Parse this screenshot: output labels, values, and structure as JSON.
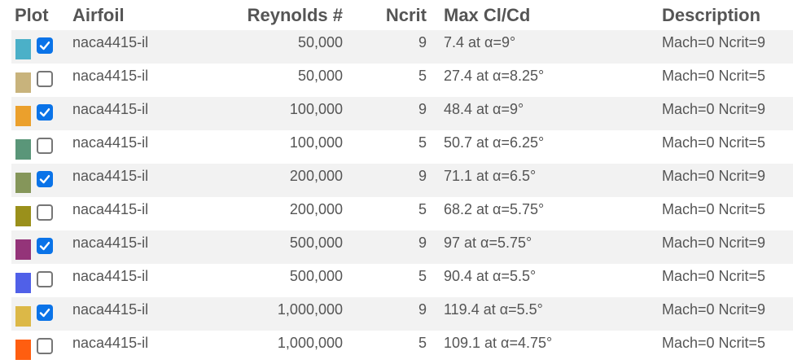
{
  "headers": {
    "plot": "Plot",
    "airfoil": "Airfoil",
    "reynolds": "Reynolds #",
    "ncrit": "Ncrit",
    "maxclcd": "Max Cl/Cd",
    "description": "Description"
  },
  "rows": [
    {
      "color": "#4bb0c8",
      "checked": true,
      "airfoil": "naca4415-il",
      "reynolds": "50,000",
      "ncrit": "9",
      "maxclcd": "7.4 at α=9°",
      "description": "Mach=0 Ncrit=9"
    },
    {
      "color": "#c8b37c",
      "checked": false,
      "airfoil": "naca4415-il",
      "reynolds": "50,000",
      "ncrit": "5",
      "maxclcd": "27.4 at α=8.25°",
      "description": "Mach=0 Ncrit=5"
    },
    {
      "color": "#eba02c",
      "checked": true,
      "airfoil": "naca4415-il",
      "reynolds": "100,000",
      "ncrit": "9",
      "maxclcd": "48.4 at α=9°",
      "description": "Mach=0 Ncrit=9"
    },
    {
      "color": "#5a9679",
      "checked": false,
      "airfoil": "naca4415-il",
      "reynolds": "100,000",
      "ncrit": "5",
      "maxclcd": "50.7 at α=6.25°",
      "description": "Mach=0 Ncrit=5"
    },
    {
      "color": "#85965a",
      "checked": true,
      "airfoil": "naca4415-il",
      "reynolds": "200,000",
      "ncrit": "9",
      "maxclcd": "71.1 at α=6.5°",
      "description": "Mach=0 Ncrit=9"
    },
    {
      "color": "#9a901b",
      "checked": false,
      "airfoil": "naca4415-il",
      "reynolds": "200,000",
      "ncrit": "5",
      "maxclcd": "68.2 at α=5.75°",
      "description": "Mach=0 Ncrit=5"
    },
    {
      "color": "#943479",
      "checked": true,
      "airfoil": "naca4415-il",
      "reynolds": "500,000",
      "ncrit": "9",
      "maxclcd": "97 at α=5.75°",
      "description": "Mach=0 Ncrit=9"
    },
    {
      "color": "#5060e8",
      "checked": false,
      "airfoil": "naca4415-il",
      "reynolds": "500,000",
      "ncrit": "5",
      "maxclcd": "90.4 at α=5.5°",
      "description": "Mach=0 Ncrit=5"
    },
    {
      "color": "#dcb847",
      "checked": true,
      "airfoil": "naca4415-il",
      "reynolds": "1,000,000",
      "ncrit": "9",
      "maxclcd": "119.4 at α=5.5°",
      "description": "Mach=0 Ncrit=9"
    },
    {
      "color": "#ff5e10",
      "checked": false,
      "airfoil": "naca4415-il",
      "reynolds": "1,000,000",
      "ncrit": "5",
      "maxclcd": "109.1 at α=4.75°",
      "description": "Mach=0 Ncrit=5"
    }
  ]
}
